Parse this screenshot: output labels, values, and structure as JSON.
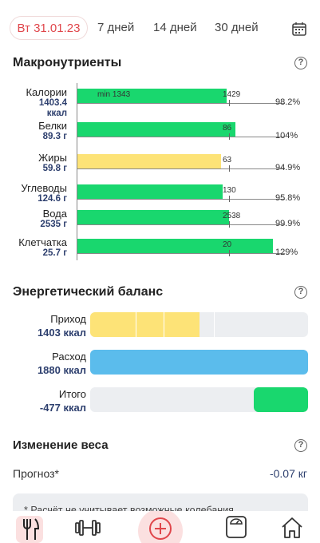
{
  "tabs": {
    "active": "Вт 31.01.23",
    "items": [
      "7 дней",
      "14 дней",
      "30 дней"
    ]
  },
  "macros": {
    "title": "Макронутриенты",
    "min_label": "min 1343",
    "rows": [
      {
        "name": "Калории",
        "value_line1": "1403.4",
        "value_line2": "ккал",
        "target": "1429",
        "pct": "98.2%",
        "fill": 0.982,
        "color": "green"
      },
      {
        "name": "Белки",
        "value_line1": "89.3 г",
        "value_line2": "",
        "target": "86",
        "pct": "104%",
        "fill": 1.04,
        "color": "green"
      },
      {
        "name": "Жиры",
        "value_line1": "59.8 г",
        "value_line2": "",
        "target": "63",
        "pct": "94.9%",
        "fill": 0.949,
        "color": "yellow"
      },
      {
        "name": "Углеводы",
        "value_line1": "124.6 г",
        "value_line2": "",
        "target": "130",
        "pct": "95.8%",
        "fill": 0.958,
        "color": "green"
      },
      {
        "name": "Вода",
        "value_line1": "2535 г",
        "value_line2": "",
        "target": "2538",
        "pct": "99.9%",
        "fill": 0.999,
        "color": "green"
      },
      {
        "name": "Клетчатка",
        "value_line1": "25.7 г",
        "value_line2": "",
        "target": "20",
        "pct": "129%",
        "fill": 1.29,
        "color": "green"
      }
    ]
  },
  "energy": {
    "title": "Энергетический баланс",
    "rows": [
      {
        "label": "Приход",
        "value": "1403 ккал",
        "fill": 0.75,
        "color": "#fde377"
      },
      {
        "label": "Расход",
        "value": "1880 ккал",
        "fill": 1.0,
        "color": "#5bbcec"
      },
      {
        "label": "Итого",
        "value": "-477 ккал",
        "fill": 0.25,
        "color": "#19d76e"
      }
    ]
  },
  "weight": {
    "title": "Изменение веса",
    "forecast_label": "Прогноз*",
    "forecast_value": "-0.07 кг",
    "note": "* Расчёт не учитывает возможные колебания"
  },
  "colors": {
    "accent": "#e0464b",
    "green": "#19d76e",
    "yellow": "#fde377",
    "blue": "#5bbcec"
  },
  "nav_icons": [
    "fork-knife-icon",
    "dumbbell-icon",
    "plus-icon",
    "scale-icon",
    "home-icon"
  ]
}
